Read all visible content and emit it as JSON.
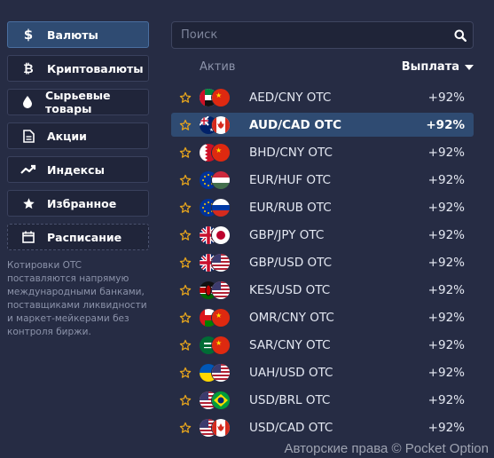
{
  "categories": [
    {
      "label": "Валюты",
      "icon": "dollar-icon",
      "active": true
    },
    {
      "label": "Криптовалюты",
      "icon": "bitcoin-icon",
      "active": false
    },
    {
      "label": "Сырьевые товары",
      "icon": "drop-icon",
      "active": false
    },
    {
      "label": "Акции",
      "icon": "document-icon",
      "active": false
    },
    {
      "label": "Индексы",
      "icon": "trend-icon",
      "active": false
    },
    {
      "label": "Избранное",
      "icon": "star-icon",
      "active": false
    },
    {
      "label": "Расписание",
      "icon": "calendar-icon",
      "active": false
    }
  ],
  "note": "Котировки OTC поставляются напрямую международными банками, поставщиками ликвидности и маркет-мейкерами без контроля биржи.",
  "search": {
    "placeholder": "Поиск"
  },
  "columns": {
    "asset": "Актив",
    "payout": "Выплата"
  },
  "assets": [
    {
      "pair": "AED/CNY OTC",
      "payout": "+92%",
      "flags": [
        "ae",
        "cn"
      ],
      "selected": false
    },
    {
      "pair": "AUD/CAD OTC",
      "payout": "+92%",
      "flags": [
        "au",
        "ca"
      ],
      "selected": true
    },
    {
      "pair": "BHD/CNY OTC",
      "payout": "+92%",
      "flags": [
        "bh",
        "cn"
      ],
      "selected": false
    },
    {
      "pair": "EUR/HUF OTC",
      "payout": "+92%",
      "flags": [
        "eu",
        "hu"
      ],
      "selected": false
    },
    {
      "pair": "EUR/RUB OTC",
      "payout": "+92%",
      "flags": [
        "eu",
        "ru"
      ],
      "selected": false
    },
    {
      "pair": "GBP/JPY OTC",
      "payout": "+92%",
      "flags": [
        "gb",
        "jp"
      ],
      "selected": false
    },
    {
      "pair": "GBP/USD OTC",
      "payout": "+92%",
      "flags": [
        "gb",
        "us"
      ],
      "selected": false
    },
    {
      "pair": "KES/USD OTC",
      "payout": "+92%",
      "flags": [
        "ke",
        "us"
      ],
      "selected": false
    },
    {
      "pair": "OMR/CNY OTC",
      "payout": "+92%",
      "flags": [
        "om",
        "cn"
      ],
      "selected": false
    },
    {
      "pair": "SAR/CNY OTC",
      "payout": "+92%",
      "flags": [
        "sa",
        "cn"
      ],
      "selected": false
    },
    {
      "pair": "UAH/USD OTC",
      "payout": "+92%",
      "flags": [
        "ua",
        "us"
      ],
      "selected": false
    },
    {
      "pair": "USD/BRL OTC",
      "payout": "+92%",
      "flags": [
        "us",
        "br"
      ],
      "selected": false
    },
    {
      "pair": "USD/CAD OTC",
      "payout": "+92%",
      "flags": [
        "us",
        "ca"
      ],
      "selected": false
    }
  ],
  "watermark": "Авторские права © Pocket Option",
  "colors": {
    "accent": "#2f4b72",
    "star": "#e5a41d",
    "background": "#262c44"
  }
}
